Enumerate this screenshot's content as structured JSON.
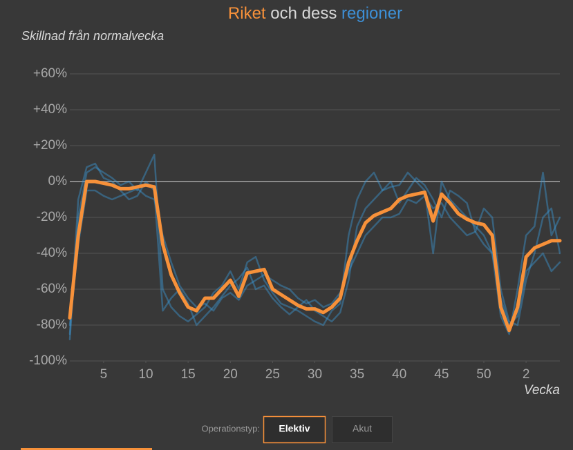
{
  "chart_data": {
    "type": "line",
    "title_parts": [
      {
        "text": "Riket",
        "color": "#f7913a"
      },
      {
        "text": "och dess",
        "color": "#d8d8d8"
      },
      {
        "text": "regioner",
        "color": "#3d8fd6"
      }
    ],
    "y_label": "Skillnad från normalvecka",
    "x_label": "Vecka",
    "x": [
      1,
      2,
      3,
      4,
      5,
      6,
      7,
      8,
      9,
      10,
      11,
      12,
      13,
      14,
      15,
      16,
      17,
      18,
      19,
      20,
      21,
      22,
      23,
      24,
      25,
      26,
      27,
      28,
      29,
      30,
      31,
      32,
      33,
      34,
      35,
      36,
      37,
      38,
      39,
      40,
      41,
      42,
      43,
      44,
      45,
      46,
      47,
      48,
      49,
      50,
      51,
      52,
      53,
      54,
      55,
      56,
      57,
      58,
      59
    ],
    "xlim": [
      1,
      59
    ],
    "xticks": [
      5,
      10,
      15,
      20,
      25,
      30,
      35,
      40,
      45,
      50,
      {
        "value": 55,
        "label": "2"
      }
    ],
    "ylim": [
      -100,
      60
    ],
    "yticks": [
      {
        "value": 60,
        "label": "+60%"
      },
      {
        "value": 40,
        "label": "+40%"
      },
      {
        "value": 20,
        "label": "+20%"
      },
      {
        "value": 0,
        "label": "0%"
      },
      {
        "value": -20,
        "label": "-20%"
      },
      {
        "value": -40,
        "label": "-40%"
      },
      {
        "value": -60,
        "label": "-60%"
      },
      {
        "value": -80,
        "label": "-80%"
      },
      {
        "value": -100,
        "label": "-100%"
      }
    ],
    "grid": true,
    "series": [
      {
        "color": "#3c96d2",
        "values": [
          -88,
          -20,
          5,
          8,
          5,
          2,
          -2,
          0,
          -5,
          5,
          15,
          -60,
          -70,
          -75,
          -78,
          -74,
          -70,
          -62,
          -58,
          -50,
          -60,
          -45,
          -42,
          -55,
          -62,
          -68,
          -70,
          -72,
          -75,
          -78,
          -80,
          -72,
          -68,
          -30,
          -10,
          0,
          5,
          -5,
          -3,
          -2,
          5,
          0,
          -5,
          -40,
          0,
          -10,
          -15,
          -20,
          -25,
          -30,
          -40,
          -75,
          -85,
          -60,
          -30,
          -25,
          5,
          -30,
          -20
        ]
      },
      {
        "color": "#3c96d2",
        "values": [
          -80,
          -35,
          -5,
          -5,
          -8,
          -10,
          -8,
          -6,
          -4,
          -8,
          -10,
          -30,
          -45,
          -58,
          -65,
          -70,
          -68,
          -72,
          -65,
          -62,
          -66,
          -58,
          -55,
          -52,
          -55,
          -58,
          -60,
          -65,
          -68,
          -66,
          -70,
          -68,
          -62,
          -50,
          -40,
          -30,
          -25,
          -20,
          -20,
          -18,
          -10,
          -12,
          -8,
          -15,
          -12,
          -20,
          -25,
          -30,
          -28,
          -35,
          -40,
          -65,
          -80,
          -75,
          -50,
          -45,
          -40,
          -50,
          -45
        ]
      },
      {
        "color": "#3c96d2",
        "values": [
          -85,
          -10,
          8,
          10,
          2,
          0,
          -5,
          -10,
          -8,
          0,
          -5,
          -72,
          -65,
          -60,
          -68,
          -80,
          -75,
          -70,
          -64,
          -58,
          -54,
          -48,
          -60,
          -58,
          -65,
          -70,
          -74,
          -70,
          -66,
          -72,
          -75,
          -78,
          -73,
          -55,
          -25,
          -15,
          -10,
          -5,
          0,
          -12,
          -5,
          2,
          -2,
          -10,
          -20,
          -5,
          -8,
          -12,
          -28,
          -15,
          -20,
          -60,
          -78,
          -80,
          -55,
          -40,
          -20,
          -15,
          -40
        ]
      },
      {
        "color": "#f7913a",
        "values": [
          -76,
          -30,
          0,
          0,
          -1,
          -2,
          -4,
          -4,
          -3,
          -2,
          -3,
          -35,
          -52,
          -62,
          -70,
          -72,
          -65,
          -65,
          -60,
          -55,
          -64,
          -51,
          -50,
          -49,
          -60,
          -63,
          -66,
          -69,
          -71,
          -71,
          -73,
          -70,
          -65,
          -45,
          -33,
          -23,
          -19,
          -17,
          -15,
          -10,
          -8,
          -7,
          -6,
          -22,
          -7,
          -12,
          -18,
          -21,
          -23,
          -24,
          -30,
          -70,
          -83,
          -70,
          -42,
          -37,
          -35,
          -33,
          -33
        ]
      }
    ]
  },
  "controls": {
    "label": "Operationstyp:",
    "buttons": [
      "Elektiv",
      "Akut"
    ]
  }
}
